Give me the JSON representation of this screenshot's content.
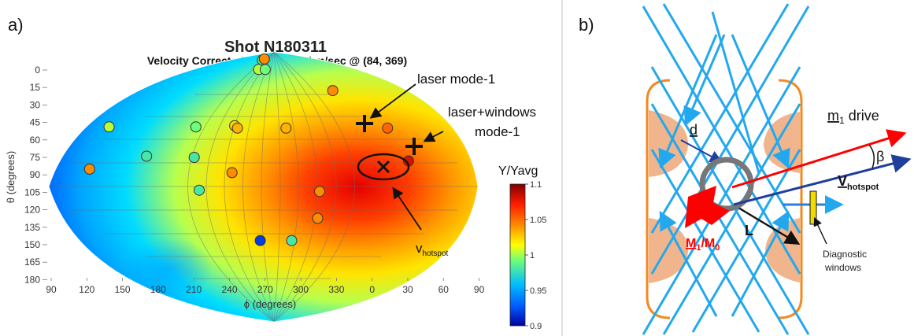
{
  "panel_a": {
    "label": "a)",
    "title": "Shot N180311",
    "subtitle": "Velocity Corrected: 72.1 ± 23.1 km/sec @ (84, 369)",
    "annotations": {
      "laser_mode": "laser mode-1",
      "laser_windows_line1": "laser+windows",
      "laser_windows_line2": "mode-1",
      "vhotspot_main": "v",
      "vhotspot_sub": "hotspot"
    },
    "colorbar": {
      "label": "Y/Yavg",
      "ticks": [
        "1.1",
        "1.05",
        "1",
        "0.95",
        "0.9"
      ],
      "colors": [
        "#0000a0",
        "#005cff",
        "#00bcff",
        "#6dfd7a",
        "#ffff00",
        "#ff8b00",
        "#ff1b00",
        "#7f0000"
      ]
    },
    "chart_data": {
      "type": "scatter",
      "title": "Shot N180311",
      "subtitle": "Velocity Corrected: 72.1 ± 23.1 km/sec @ (84, 369)",
      "xlabel": "ϕ (degrees)",
      "ylabel": "θ (degrees)",
      "x_ticks": [
        "90",
        "120",
        "150",
        "180",
        "210",
        "240",
        "270",
        "300",
        "330",
        "0",
        "30",
        "60",
        "90"
      ],
      "y_ticks": [
        "0",
        "15",
        "30",
        "45",
        "60",
        "75",
        "90",
        "105",
        "120",
        "135",
        "150",
        "165",
        "180"
      ],
      "xlim": [
        90,
        450
      ],
      "ylim": [
        180,
        0
      ],
      "grid": true,
      "colorbar": {
        "label": "Y/Yavg",
        "range": [
          0.9,
          1.1
        ],
        "ticks": [
          1.1,
          1.05,
          1.0,
          0.95,
          0.9
        ]
      },
      "series": [
        {
          "name": "detectors",
          "points": [
            {
              "phi": 263,
              "theta": 7,
              "value": 0.98
            },
            {
              "phi": 278,
              "theta": 6,
              "value": 1.04
            },
            {
              "phi": 255,
              "theta": 15,
              "value": 1.0
            },
            {
              "phi": 276,
              "theta": 15,
              "value": 0.99
            },
            {
              "phi": 377,
              "theta": 33,
              "value": 1.04
            },
            {
              "phi": 126,
              "theta": 64,
              "value": 1.0
            },
            {
              "phi": 207,
              "theta": 64,
              "value": 0.99
            },
            {
              "phi": 243,
              "theta": 63,
              "value": 1.02
            },
            {
              "phi": 246,
              "theta": 65,
              "value": 1.03
            },
            {
              "phi": 291,
              "theta": 65,
              "value": 1.03
            },
            {
              "phi": 385,
              "theta": 65,
              "value": 1.05
            },
            {
              "phi": 392,
              "theta": 93,
              "value": 1.08
            },
            {
              "phi": 172,
              "theta": 89,
              "value": 0.98
            },
            {
              "phi": 212,
              "theta": 90,
              "value": 0.98
            },
            {
              "phi": 122,
              "theta": 100,
              "value": 1.04
            },
            {
              "phi": 243,
              "theta": 103,
              "value": 1.04
            },
            {
              "phi": 209,
              "theta": 118,
              "value": 0.98
            },
            {
              "phi": 324,
              "theta": 119,
              "value": 1.04
            },
            {
              "phi": 344,
              "theta": 142,
              "value": 1.04
            },
            {
              "phi": 343,
              "theta": 161,
              "value": 0.98
            },
            {
              "phi": 262,
              "theta": 161,
              "value": 0.92
            }
          ]
        }
      ],
      "markers": [
        {
          "name": "laser mode-1",
          "phi": 350,
          "theta": 48,
          "symbol": "+"
        },
        {
          "name": "laser+windows mode-1",
          "phi": 390,
          "theta": 68,
          "symbol": "+"
        },
        {
          "name": "v hotspot",
          "phi": 369,
          "theta": 84,
          "symbol": "x"
        }
      ]
    }
  },
  "panel_b": {
    "label": "b)",
    "labels": {
      "d": "d",
      "m1_main": "m",
      "m1_sub": "1",
      "drive": "drive",
      "beta": "β",
      "v_main": "V",
      "v_sub": "hotspot",
      "L": "L",
      "M1": "M",
      "M1_sub": "1",
      "slash": "/",
      "M0": "M",
      "M0_sub": "0",
      "diagnostic_line1": "Diagnostic",
      "diagnostic_line2": "windows"
    }
  }
}
